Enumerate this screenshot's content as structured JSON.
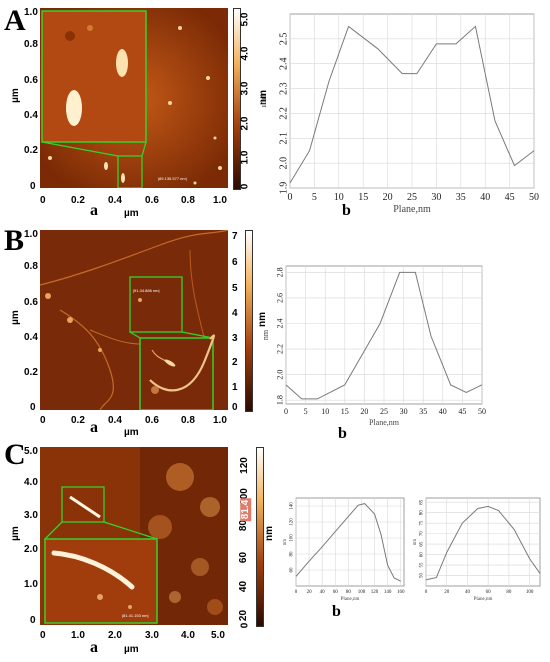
{
  "panels": {
    "A": {
      "letter": "A",
      "sub_a": "a",
      "sub_b": "b",
      "afm": {
        "y_unit": "µm",
        "x_unit": "µm",
        "y_ticks": [
          "1.0",
          "0.8",
          "0.6",
          "0.4",
          "0.2",
          "0"
        ],
        "x_ticks": [
          "0",
          "0.2",
          "0.4",
          "0.6",
          "0.8",
          "1.0"
        ],
        "colorbar_ticks": [
          "5.0",
          "4.0",
          "3.0",
          "2.0",
          "1.0",
          "0"
        ],
        "colorbar_unit": "nm"
      }
    },
    "B": {
      "letter": "B",
      "sub_a": "a",
      "sub_b": "b",
      "afm": {
        "y_unit": "µm",
        "x_unit": "µm",
        "y_ticks": [
          "1.0",
          "0.8",
          "0.6",
          "0.4",
          "0.2",
          "0"
        ],
        "x_ticks": [
          "0",
          "0.2",
          "0.4",
          "0.6",
          "0.8",
          "1.0"
        ],
        "colorbar_ticks": [
          "7",
          "6",
          "5",
          "4",
          "3",
          "2",
          "1",
          "0"
        ],
        "colorbar_unit": "nm"
      }
    },
    "C": {
      "letter": "C",
      "sub_a": "a",
      "sub_b": "b",
      "afm": {
        "y_unit": "µm",
        "x_unit": "µm",
        "y_ticks": [
          "5.0",
          "4.0",
          "3.0",
          "2.0",
          "1.0",
          "0"
        ],
        "x_ticks": [
          "0",
          "1.0",
          "2.0",
          "3.0",
          "4.0",
          "5.0"
        ],
        "colorbar_ticks": [
          "120",
          "100",
          "80",
          "60",
          "40",
          "20",
          "0"
        ],
        "colorbar_unit": "nm",
        "colorbar_marker": "81.4"
      }
    }
  },
  "colors": {
    "afm_dark": "#2a0a00",
    "afm_mid": "#a33d0c",
    "afm_bright": "#f4b25a",
    "inset_border": "#35d22a",
    "chart_line": "#7a7a7a",
    "grid": "#d8d8d8"
  },
  "chart_data": [
    {
      "type": "line",
      "xlabel": "Plane,nm",
      "ylabel": "nm",
      "x": [
        0,
        4,
        8,
        12,
        18,
        23,
        26,
        30,
        34,
        38,
        42,
        46,
        50
      ],
      "values": [
        1.92,
        2.05,
        2.33,
        2.55,
        2.46,
        2.36,
        2.36,
        2.48,
        2.48,
        2.55,
        2.17,
        1.99,
        2.05
      ],
      "xlim": [
        0,
        50
      ],
      "ylim": [
        1.9,
        2.6
      ],
      "xticks": [
        "0",
        "5",
        "10",
        "15",
        "20",
        "25",
        "30",
        "35",
        "40",
        "45",
        "50"
      ],
      "yticks": [
        "1.9",
        "2.0",
        "2.1",
        "2.2",
        "2.3",
        "2.4",
        "2.5"
      ],
      "grid": true
    },
    {
      "type": "line",
      "xlabel": "Plane,nm",
      "ylabel": "nm",
      "x": [
        0,
        4,
        8,
        15,
        24,
        29,
        33,
        37,
        42,
        46,
        50
      ],
      "values": [
        1.92,
        1.81,
        1.81,
        1.92,
        2.4,
        2.8,
        2.8,
        2.3,
        1.92,
        1.86,
        1.92
      ],
      "xlim": [
        0,
        50
      ],
      "ylim": [
        1.77,
        2.85
      ],
      "xticks": [
        "0",
        "5",
        "10",
        "15",
        "20",
        "25",
        "30",
        "35",
        "40",
        "45",
        "50"
      ],
      "yticks": [
        "1.8",
        "2.0",
        "2.2",
        "2.4",
        "2.6",
        "2.8"
      ],
      "grid": true
    },
    {
      "type": "line",
      "xlabel": "Plane,nm",
      "ylabel": "nm",
      "x": [
        0,
        20,
        40,
        60,
        80,
        95,
        105,
        120,
        130,
        140,
        150,
        160
      ],
      "values": [
        52,
        71,
        89,
        108,
        127,
        141,
        143,
        130,
        104,
        66,
        50,
        46
      ],
      "xlim": [
        0,
        165
      ],
      "ylim": [
        40,
        150
      ],
      "xticks": [
        "0",
        "20",
        "40",
        "60",
        "80",
        "100",
        "120",
        "140",
        "160"
      ],
      "yticks": [
        "60",
        "80",
        "100",
        "120",
        "140"
      ],
      "grid": true
    },
    {
      "type": "line",
      "xlabel": "Plane,nm",
      "ylabel": "nm",
      "x": [
        0,
        10,
        20,
        35,
        50,
        60,
        70,
        85,
        100,
        110
      ],
      "values": [
        48,
        49,
        61,
        75,
        82,
        83,
        81,
        72,
        58,
        51
      ],
      "xlim": [
        0,
        110
      ],
      "ylim": [
        45,
        87
      ],
      "xticks": [
        "0",
        "20",
        "40",
        "60",
        "80",
        "100"
      ],
      "yticks": [
        "50",
        "55",
        "60",
        "65",
        "70",
        "75",
        "80",
        "85"
      ],
      "grid": true
    }
  ]
}
